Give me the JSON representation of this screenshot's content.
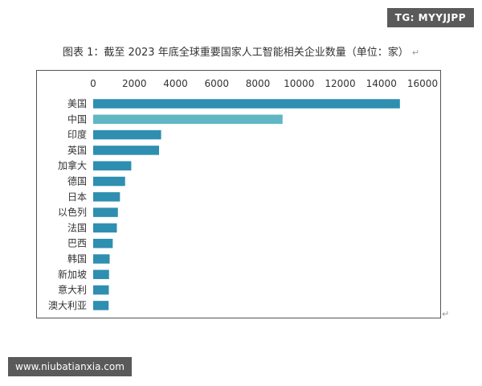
{
  "watermark_top": "TG: MYYJJPP",
  "watermark_bottom": "www.niubatianxia.com",
  "paragraph_mark": "↵",
  "chart_data": {
    "type": "bar",
    "orientation": "horizontal",
    "title": "图表 1：截至 2023 年底全球重要国家人工智能相关企业数量（单位：家）",
    "categories": [
      "美国",
      "中国",
      "印度",
      "英国",
      "加拿大",
      "德国",
      "日本",
      "以色列",
      "法国",
      "巴西",
      "韩国",
      "新加坡",
      "意大利",
      "澳大利亚"
    ],
    "values": [
      14900,
      9200,
      3300,
      3200,
      1850,
      1550,
      1300,
      1200,
      1150,
      950,
      800,
      770,
      760,
      750
    ],
    "xlim": [
      0,
      16000
    ],
    "x_ticks": [
      0,
      2000,
      4000,
      6000,
      8000,
      10000,
      12000,
      14000,
      16000
    ],
    "x_axis_position": "top",
    "grid": false,
    "legend": "none",
    "colors": {
      "default": "#2e8fb0",
      "highlight": "#5fb7c3"
    },
    "highlight_category": "中国"
  }
}
